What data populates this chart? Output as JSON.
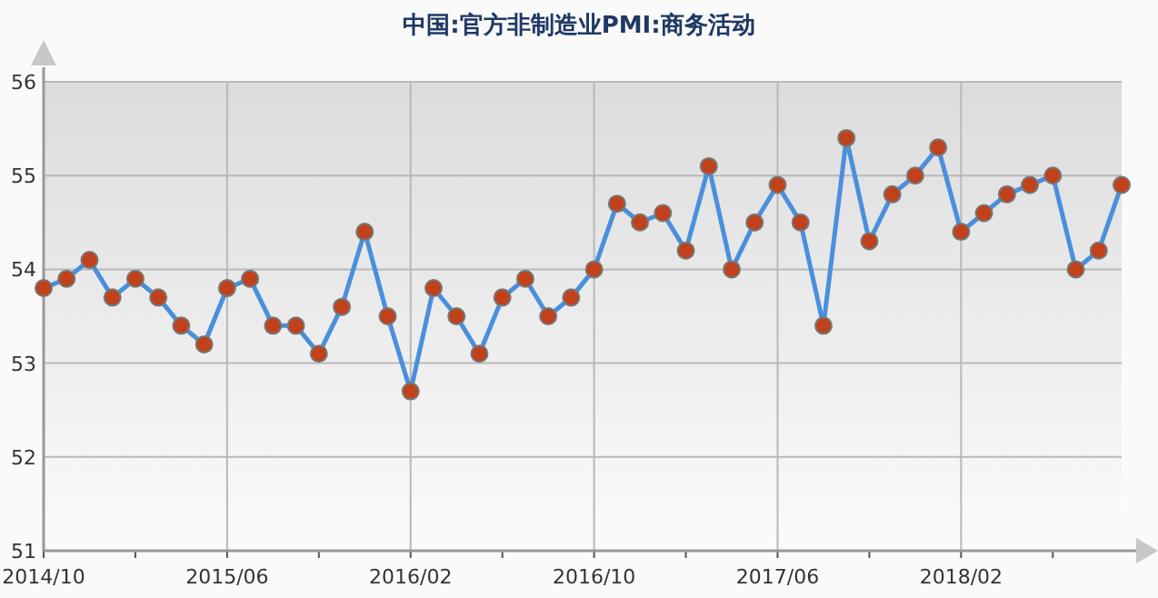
{
  "chart_data": {
    "type": "line",
    "title": "中国:官方非制造业PMI:商务活动",
    "x": [
      "2014-10",
      "2014-11",
      "2014-12",
      "2015-01",
      "2015-02",
      "2015-03",
      "2015-04",
      "2015-05",
      "2015-06",
      "2015-07",
      "2015-08",
      "2015-09",
      "2015-10",
      "2015-11",
      "2015-12",
      "2016-01",
      "2016-02",
      "2016-03",
      "2016-04",
      "2016-05",
      "2016-06",
      "2016-07",
      "2016-08",
      "2016-09",
      "2016-10",
      "2016-11",
      "2016-12",
      "2017-01",
      "2017-02",
      "2017-03",
      "2017-04",
      "2017-05",
      "2017-06",
      "2017-07",
      "2017-08",
      "2017-09",
      "2017-10",
      "2017-11",
      "2017-12",
      "2018-01",
      "2018-02",
      "2018-03",
      "2018-04",
      "2018-05",
      "2018-06",
      "2018-07",
      "2018-08",
      "2018-09"
    ],
    "series": [
      {
        "color": "#4a8fdc",
        "values": [
          53.8,
          53.9,
          54.1,
          53.7,
          53.9,
          53.7,
          53.4,
          53.2,
          53.8,
          53.9,
          53.4,
          53.4,
          53.1,
          53.6,
          54.4,
          53.5,
          52.7,
          53.8,
          53.5,
          53.1,
          53.7,
          53.9,
          53.5,
          53.7,
          54.0,
          54.7,
          54.5,
          54.6,
          54.2,
          55.1,
          54.0,
          54.5,
          54.9,
          54.5,
          53.4,
          55.4,
          54.3,
          54.8,
          55.0,
          55.3,
          54.4,
          54.6,
          54.8,
          54.9,
          55.0,
          54.0,
          54.2,
          54.9
        ]
      }
    ],
    "marker": "circle",
    "xlim": [
      "2014-10",
      "2018-09"
    ],
    "xticks": [
      {
        "value": "2014-10",
        "label": "2014/10"
      },
      {
        "value": "2015-02",
        "label": null
      },
      {
        "value": "2015-06",
        "label": "2015/06"
      },
      {
        "value": "2015-10",
        "label": null
      },
      {
        "value": "2016-02",
        "label": "2016/02"
      },
      {
        "value": "2016-06",
        "label": null
      },
      {
        "value": "2016-10",
        "label": "2016/10"
      },
      {
        "value": "2017-02",
        "label": null
      },
      {
        "value": "2017-06",
        "label": "2017/06"
      },
      {
        "value": "2017-10",
        "label": null
      },
      {
        "value": "2018-02",
        "label": "2018/02"
      },
      {
        "value": "2018-06",
        "label": null
      }
    ],
    "ylim": [
      51,
      56
    ],
    "yticks": [
      51,
      52,
      53,
      54,
      55,
      56
    ],
    "grid": true
  }
}
